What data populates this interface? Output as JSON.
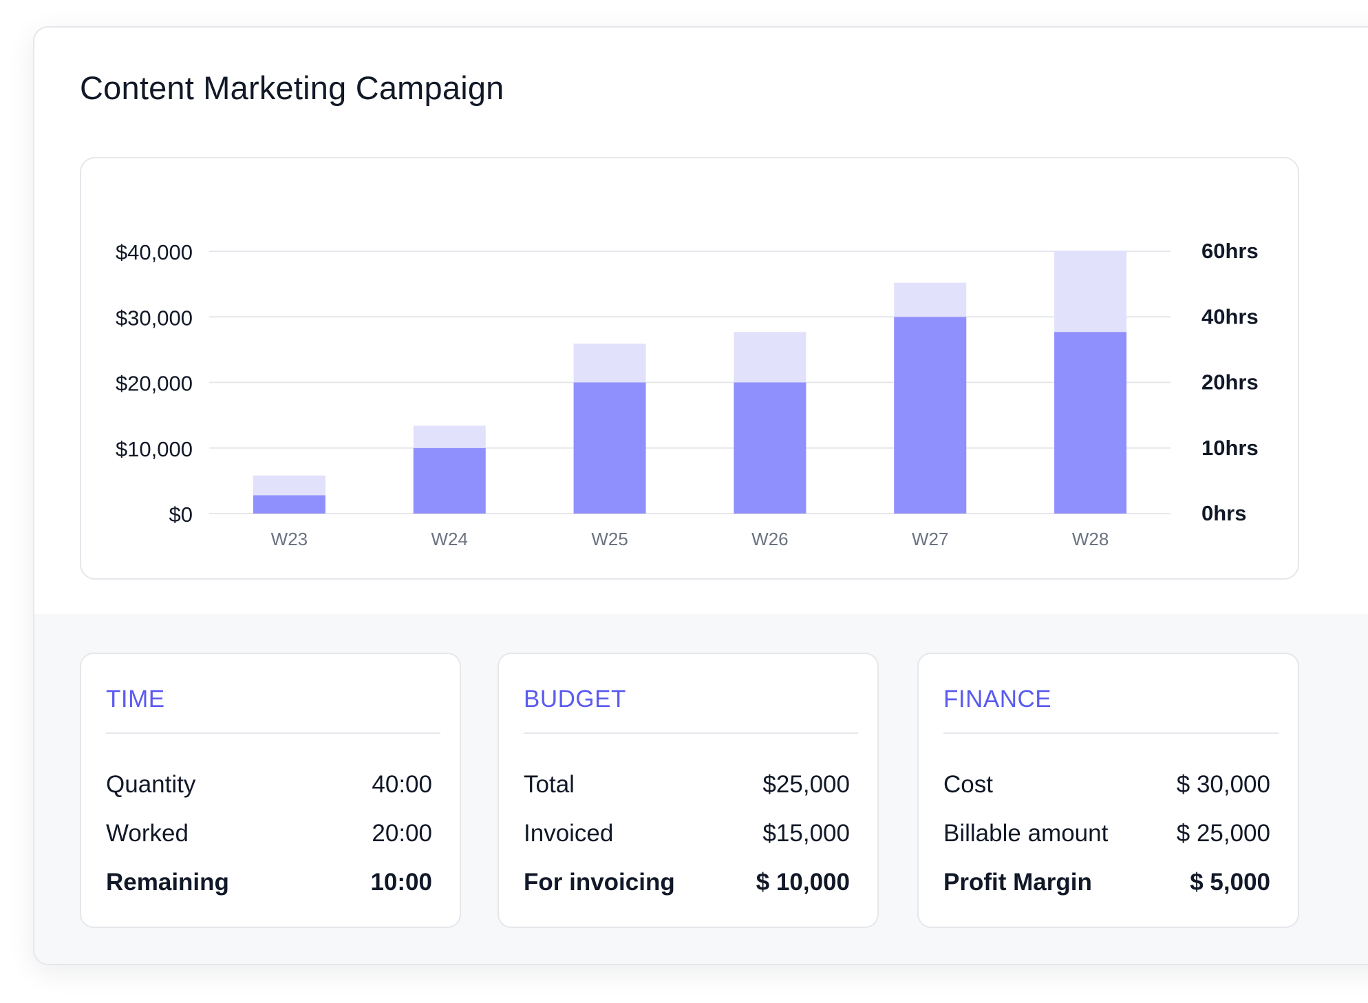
{
  "title": "Content Marketing Campaign",
  "colors": {
    "accent": "#5b5bf0",
    "bar_primary": "#8f8ffd",
    "bar_secondary": "#e1e1fb",
    "gridline": "#e5e7eb",
    "background_muted": "#f7f8fa"
  },
  "chart_data": {
    "type": "bar",
    "stacked": true,
    "categories": [
      "W23",
      "W24",
      "W25",
      "W26",
      "W27",
      "W28"
    ],
    "series": [
      {
        "values": [
          2800,
          10000,
          20000,
          20000,
          30000,
          27700
        ]
      },
      {
        "values": [
          3000,
          3400,
          5900,
          7700,
          5200,
          12400
        ]
      }
    ],
    "y_left": {
      "ticks": [
        "$0",
        "$10,000",
        "$20,000",
        "$30,000",
        "$40,000"
      ],
      "range": [
        0,
        40000
      ]
    },
    "y_right": {
      "ticks": [
        "0hrs",
        "10hrs",
        "20hrs",
        "40hrs",
        "60hrs"
      ]
    },
    "grid": true
  },
  "cards": {
    "time": {
      "title": "TIME",
      "rows": [
        {
          "label": "Quantity",
          "value": "40:00"
        },
        {
          "label": "Worked",
          "value": "20:00"
        },
        {
          "label": "Remaining",
          "value": "10:00"
        }
      ]
    },
    "budget": {
      "title": "BUDGET",
      "rows": [
        {
          "label": "Total",
          "value": "$25,000"
        },
        {
          "label": "Invoiced",
          "value": "$15,000"
        },
        {
          "label": "For invoicing",
          "value": "$ 10,000"
        }
      ]
    },
    "finance": {
      "title": "FINANCE",
      "rows": [
        {
          "label": "Cost",
          "value": "$ 30,000"
        },
        {
          "label": "Billable amount",
          "value": "$ 25,000"
        },
        {
          "label": "Profit Margin",
          "value": "$ 5,000"
        }
      ]
    }
  }
}
